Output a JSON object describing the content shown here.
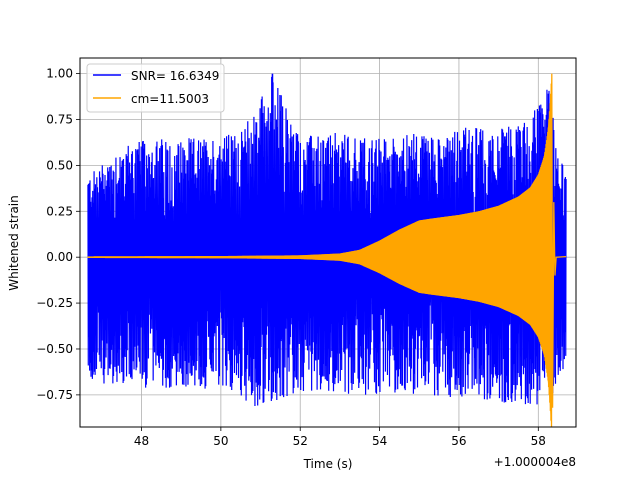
{
  "chart_data": {
    "type": "line",
    "title": "",
    "xlabel": "Time (s)",
    "ylabel": "Whitened strain",
    "x_offset_label": "+1.000004e8",
    "xlim": [
      46.45,
      58.95
    ],
    "ylim": [
      -0.925,
      1.085
    ],
    "xticks": [
      48,
      50,
      52,
      54,
      56,
      58
    ],
    "xtick_labels": [
      "48",
      "50",
      "52",
      "54",
      "56",
      "58"
    ],
    "yticks": [
      -0.75,
      -0.5,
      -0.25,
      0.0,
      0.25,
      0.5,
      0.75,
      1.0
    ],
    "ytick_labels": [
      "−0.75",
      "−0.50",
      "−0.25",
      "0.00",
      "0.25",
      "0.50",
      "0.75",
      "1.00"
    ],
    "grid": true,
    "legend_position": "upper-left",
    "series": [
      {
        "name": "SNR= 16.6349",
        "color": "#0000ff",
        "style": "dense noise (whitened data)",
        "x_range": [
          46.65,
          58.7
        ],
        "upper_envelope_x": [
          46.7,
          47.5,
          48.5,
          49.5,
          50.5,
          51.3,
          52.0,
          53.0,
          54.0,
          55.0,
          56.0,
          57.0,
          57.8,
          58.1,
          58.3,
          58.45,
          58.55,
          58.7
        ],
        "upper_envelope_y": [
          0.45,
          0.62,
          0.65,
          0.65,
          0.68,
          1.0,
          0.66,
          0.68,
          0.65,
          0.68,
          0.72,
          0.7,
          0.75,
          0.92,
          0.95,
          0.58,
          0.55,
          0.5
        ],
        "lower_envelope_x": [
          46.7,
          47.5,
          48.5,
          49.5,
          50.5,
          50.8,
          51.5,
          52.5,
          53.5,
          54.5,
          55.5,
          56.5,
          57.5,
          58.1,
          58.3,
          58.45,
          58.55,
          58.7
        ],
        "lower_envelope_y": [
          -0.68,
          -0.7,
          -0.72,
          -0.72,
          -0.75,
          -0.84,
          -0.78,
          -0.72,
          -0.76,
          -0.74,
          -0.76,
          -0.78,
          -0.8,
          -0.82,
          -0.82,
          -0.78,
          -0.7,
          -0.6
        ]
      },
      {
        "name": "cm=11.5003",
        "color": "#ffa500",
        "style": "chirp template",
        "x_range": [
          46.65,
          58.7
        ],
        "envelope_x": [
          46.65,
          50.0,
          52.0,
          53.0,
          53.5,
          54.0,
          54.5,
          55.0,
          55.3,
          56.0,
          56.5,
          57.0,
          57.5,
          57.8,
          58.0,
          58.15,
          58.25,
          58.3,
          58.34
        ],
        "envelope_y": [
          0.004,
          0.006,
          0.01,
          0.02,
          0.04,
          0.09,
          0.15,
          0.2,
          0.21,
          0.23,
          0.25,
          0.28,
          0.33,
          0.38,
          0.45,
          0.55,
          0.7,
          0.85,
          1.0
        ],
        "lower_extreme_y": -0.82,
        "merger_x": 58.34,
        "ringdown_end_x": 58.45,
        "tail_y": 0.003
      }
    ]
  }
}
